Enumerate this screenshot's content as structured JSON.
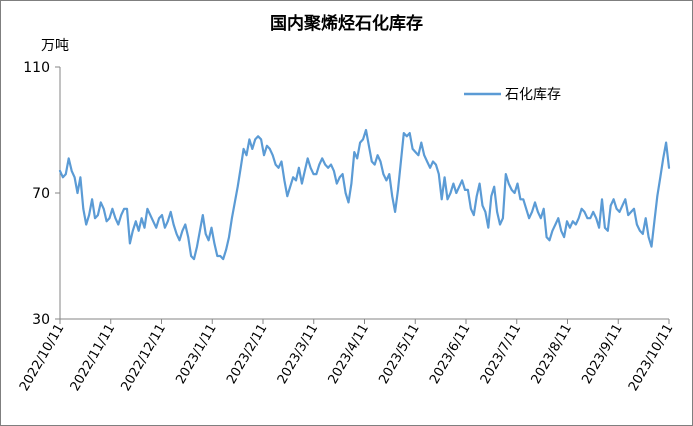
{
  "chart_data": {
    "type": "line",
    "title": "国内聚烯烃石化库存",
    "ylabel": "万吨",
    "xlabel": "",
    "ylim": [
      30,
      110
    ],
    "yticks": [
      30,
      70,
      110
    ],
    "xticks": [
      "2022/10/11",
      "2022/11/11",
      "2022/12/11",
      "2023/1/11",
      "2023/2/11",
      "2023/3/11",
      "2023/4/11",
      "2023/5/11",
      "2023/6/11",
      "2023/7/11",
      "2023/8/11",
      "2023/9/11",
      "2023/10/11"
    ],
    "grid": false,
    "legend_position": "top-right",
    "series": [
      {
        "name": "石化库存",
        "color": "#5b9bd5",
        "values": [
          77,
          75,
          76,
          81,
          77,
          75,
          70,
          75,
          65,
          60,
          63,
          68,
          62,
          63,
          67,
          65,
          61,
          62,
          65,
          62,
          60,
          63,
          65,
          65,
          54,
          58,
          61,
          58,
          62,
          59,
          65,
          63,
          61,
          59,
          62,
          63,
          59,
          61,
          64,
          60,
          57,
          55,
          58,
          60,
          56,
          50,
          49,
          53,
          58,
          63,
          57,
          55,
          59,
          54,
          50,
          50,
          49,
          52,
          56,
          62,
          67,
          72,
          78,
          84,
          82,
          87,
          84,
          87,
          88,
          87,
          82,
          85,
          84,
          82,
          79,
          78,
          80,
          74,
          69,
          72,
          75,
          74,
          78,
          73,
          77,
          81,
          78,
          76,
          76,
          79,
          81,
          79,
          78,
          79,
          77,
          73,
          75,
          76,
          70,
          67,
          73,
          83,
          81,
          86,
          87,
          90,
          85,
          80,
          79,
          82,
          80,
          76,
          74,
          76,
          69,
          64,
          71,
          80,
          89,
          88,
          89,
          84,
          83,
          82,
          86,
          82,
          80,
          78,
          80,
          79,
          76,
          68,
          75,
          68,
          70,
          73,
          70,
          72,
          74,
          71,
          71,
          65,
          63,
          69,
          73,
          66,
          64,
          59,
          69,
          72,
          64,
          60,
          62,
          76,
          73,
          71,
          70,
          73,
          68,
          68,
          65,
          62,
          64,
          67,
          64,
          62,
          65,
          56,
          55,
          58,
          60,
          62,
          58,
          56,
          61,
          59,
          61,
          60,
          62,
          65,
          64,
          62,
          62,
          64,
          62,
          59,
          68,
          59,
          58,
          66,
          68,
          65,
          64,
          66,
          68,
          63,
          64,
          65,
          60,
          58,
          57,
          62,
          56,
          53,
          61,
          69,
          75,
          81,
          86,
          78
        ]
      }
    ]
  }
}
